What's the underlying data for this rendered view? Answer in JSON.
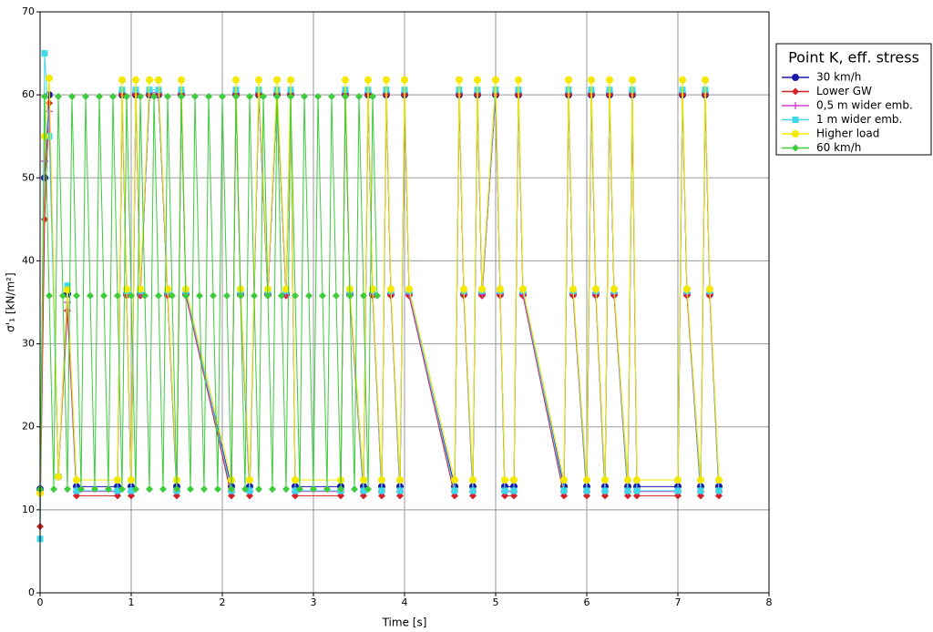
{
  "chart_data": {
    "type": "line",
    "xlabel": "Time [s]",
    "ylabel": "σ'₁ [kN/m²]",
    "legend_title": "Point K, eff. stress",
    "legend": "upper right",
    "grid": true,
    "xlim": [
      0,
      8
    ],
    "xticks": [
      0,
      1,
      2,
      3,
      4,
      5,
      6,
      7,
      8
    ],
    "ylim": [
      0,
      70
    ],
    "yticks": [
      0,
      10,
      20,
      30,
      40,
      50,
      60,
      70
    ],
    "x": [
      0,
      0.05,
      0.1,
      0.2,
      0.3,
      0.4,
      0.85,
      0.9,
      0.95,
      1.0,
      1.05,
      1.1,
      1.2,
      1.3,
      1.4,
      1.5,
      1.55,
      1.6,
      2.1,
      2.15,
      2.2,
      2.3,
      2.4,
      2.5,
      2.6,
      2.7,
      2.75,
      2.8,
      3.3,
      3.35,
      3.4,
      3.55,
      3.6,
      3.65,
      3.75,
      3.8,
      3.85,
      3.95,
      4.0,
      4.05,
      4.55,
      4.6,
      4.65,
      4.75,
      4.8,
      4.85,
      5.0,
      5.05,
      5.1,
      5.2,
      5.25,
      5.3,
      5.75,
      5.8,
      5.85,
      6.0,
      6.05,
      6.1,
      6.2,
      6.25,
      6.3,
      6.45,
      6.5,
      6.55,
      7.0,
      7.05,
      7.1,
      7.25,
      7.3,
      7.35,
      7.45
    ],
    "series": [
      {
        "name": "30 km/h",
        "color": "#1a1aa8",
        "marker": "circle",
        "values": [
          12.5,
          50,
          60,
          14,
          36,
          12.8,
          12.8,
          60,
          36,
          12.8,
          60,
          36,
          60,
          60,
          36,
          12.8,
          60,
          36,
          12.8,
          60,
          36,
          12.8,
          60,
          36,
          60,
          36,
          60,
          12.8,
          12.8,
          60,
          36,
          12.8,
          60,
          36,
          12.8,
          60,
          36,
          12.8,
          60,
          36,
          12.8,
          60,
          36,
          12.8,
          60,
          36,
          60,
          36,
          12.8,
          12.8,
          60,
          36,
          12.8,
          60,
          36,
          12.8,
          60,
          36,
          12.8,
          60,
          36,
          12.8,
          60,
          12.8,
          12.8,
          60,
          36,
          12.8,
          60,
          36,
          12.8
        ]
      },
      {
        "name": "Lower GW",
        "color": "#d42020",
        "marker": "diamond",
        "values": [
          8,
          45,
          59,
          14,
          34,
          11.7,
          11.7,
          60,
          35.8,
          11.7,
          60,
          35.8,
          60,
          60,
          35.8,
          11.7,
          60,
          35.8,
          11.7,
          60,
          35.8,
          11.7,
          60,
          35.8,
          60,
          35.8,
          60,
          11.7,
          11.7,
          60,
          35.8,
          11.7,
          60,
          35.8,
          11.7,
          60,
          35.8,
          11.7,
          60,
          35.8,
          11.7,
          60,
          35.8,
          11.7,
          60,
          35.8,
          60,
          35.8,
          11.7,
          11.7,
          60,
          35.8,
          11.7,
          60,
          35.8,
          11.7,
          60,
          35.8,
          11.7,
          60,
          35.8,
          11.7,
          60,
          11.7,
          11.7,
          60,
          35.8,
          11.7,
          60,
          35.8,
          11.7
        ]
      },
      {
        "name": "0,5 m wider emb.",
        "color": "#d040d0",
        "marker": "plus",
        "values": [
          12,
          52,
          58,
          14,
          35,
          12.2,
          12.2,
          60.3,
          36,
          12.2,
          60.3,
          36,
          60.3,
          60.3,
          36,
          12.2,
          60.3,
          36,
          12.2,
          60.3,
          36,
          12.2,
          60.3,
          36,
          60.3,
          36,
          60.3,
          12.2,
          12.2,
          60.3,
          36,
          12.2,
          60.3,
          36,
          12.2,
          60.3,
          36,
          12.2,
          60.3,
          36,
          12.2,
          60.3,
          36,
          12.2,
          60.3,
          36,
          60.3,
          36,
          12.2,
          12.2,
          60.3,
          36,
          12.2,
          60.3,
          36,
          12.2,
          60.3,
          36,
          12.2,
          60.3,
          36,
          12.2,
          60.3,
          12.2,
          12.2,
          60.3,
          36,
          12.2,
          60.3,
          36,
          12.2
        ]
      },
      {
        "name": "1 m wider emb.",
        "color": "#40d8e8",
        "marker": "square",
        "values": [
          6.5,
          65,
          55,
          14,
          37,
          12.3,
          12.3,
          60.6,
          36.4,
          12.3,
          60.6,
          36.4,
          60.6,
          60.6,
          36.4,
          12.3,
          60.6,
          36.4,
          12.3,
          60.6,
          36.4,
          12.3,
          60.6,
          36.4,
          60.6,
          36.4,
          60.6,
          12.3,
          12.3,
          60.6,
          36.4,
          12.3,
          60.6,
          36.4,
          12.3,
          60.6,
          36.4,
          12.3,
          60.6,
          36.4,
          12.3,
          60.6,
          36.4,
          12.3,
          60.6,
          36.4,
          60.6,
          36.4,
          12.3,
          12.3,
          60.6,
          36.4,
          12.3,
          60.6,
          36.4,
          12.3,
          60.6,
          36.4,
          12.3,
          60.6,
          36.4,
          12.3,
          60.6,
          12.3,
          12.3,
          60.6,
          36.4,
          12.3,
          60.6,
          36.4,
          12.3
        ]
      },
      {
        "name": "Higher load",
        "color": "#f5e800",
        "marker": "circle",
        "values": [
          12,
          55,
          62,
          14,
          36.5,
          13.6,
          13.6,
          61.8,
          36.6,
          13.6,
          61.8,
          36.6,
          61.8,
          61.8,
          36.6,
          13.6,
          61.8,
          36.6,
          13.6,
          61.8,
          36.6,
          13.6,
          61.8,
          36.6,
          61.8,
          36.6,
          61.8,
          13.6,
          13.6,
          61.8,
          36.6,
          13.6,
          61.8,
          36.6,
          13.6,
          61.8,
          36.6,
          13.6,
          61.8,
          36.6,
          13.6,
          61.8,
          36.6,
          13.6,
          61.8,
          36.6,
          61.8,
          36.6,
          13.6,
          13.6,
          61.8,
          36.6,
          13.6,
          61.8,
          36.6,
          13.6,
          61.8,
          36.6,
          13.6,
          61.8,
          36.6,
          13.6,
          61.8,
          13.6,
          13.6,
          61.8,
          36.6,
          13.6,
          61.8,
          36.6,
          13.6
        ]
      },
      {
        "name": "60 km/h",
        "color": "#3ccc3c",
        "marker": "diamond",
        "x": [
          0,
          0.05,
          0.1,
          0.15,
          0.2,
          0.25,
          0.3,
          0.35,
          0.4,
          0.45,
          0.5,
          0.55,
          0.6,
          0.65,
          0.7,
          0.75,
          0.8,
          0.85,
          0.9,
          0.95,
          1.0,
          1.05,
          1.1,
          1.15,
          1.2,
          1.25,
          1.3,
          1.35,
          1.4,
          1.45,
          1.5,
          1.55,
          1.6,
          1.65,
          1.7,
          1.75,
          1.8,
          1.85,
          1.9,
          1.95,
          2.0,
          2.05,
          2.1,
          2.15,
          2.2,
          2.25,
          2.3,
          2.35,
          2.4,
          2.45,
          2.5,
          2.55,
          2.6,
          2.65,
          2.7,
          2.75,
          2.8,
          2.85,
          2.9,
          2.95,
          3.0,
          3.05,
          3.1,
          3.15,
          3.2,
          3.25,
          3.3,
          3.35,
          3.4,
          3.45,
          3.5,
          3.55,
          3.6,
          3.65,
          3.7
        ],
        "values": [
          12.5,
          59.8,
          35.8,
          12.5,
          59.8,
          35.8,
          12.5,
          59.8,
          35.8,
          12.5,
          59.8,
          35.8,
          12.5,
          59.8,
          35.8,
          12.5,
          59.8,
          35.8,
          12.5,
          59.8,
          35.8,
          12.5,
          59.8,
          35.8,
          12.5,
          59.8,
          35.8,
          12.5,
          59.8,
          35.8,
          12.5,
          59.8,
          35.8,
          12.5,
          59.8,
          35.8,
          12.5,
          59.8,
          35.8,
          12.5,
          59.8,
          35.8,
          12.5,
          59.8,
          35.8,
          12.5,
          59.8,
          35.8,
          12.5,
          59.8,
          35.8,
          12.5,
          59.8,
          35.8,
          12.5,
          59.8,
          35.8,
          12.5,
          59.8,
          35.8,
          12.5,
          59.8,
          35.8,
          12.5,
          59.8,
          35.8,
          12.5,
          59.8,
          35.8,
          12.5,
          59.8,
          35.8,
          12.5,
          59.8,
          35.8
        ]
      }
    ]
  }
}
